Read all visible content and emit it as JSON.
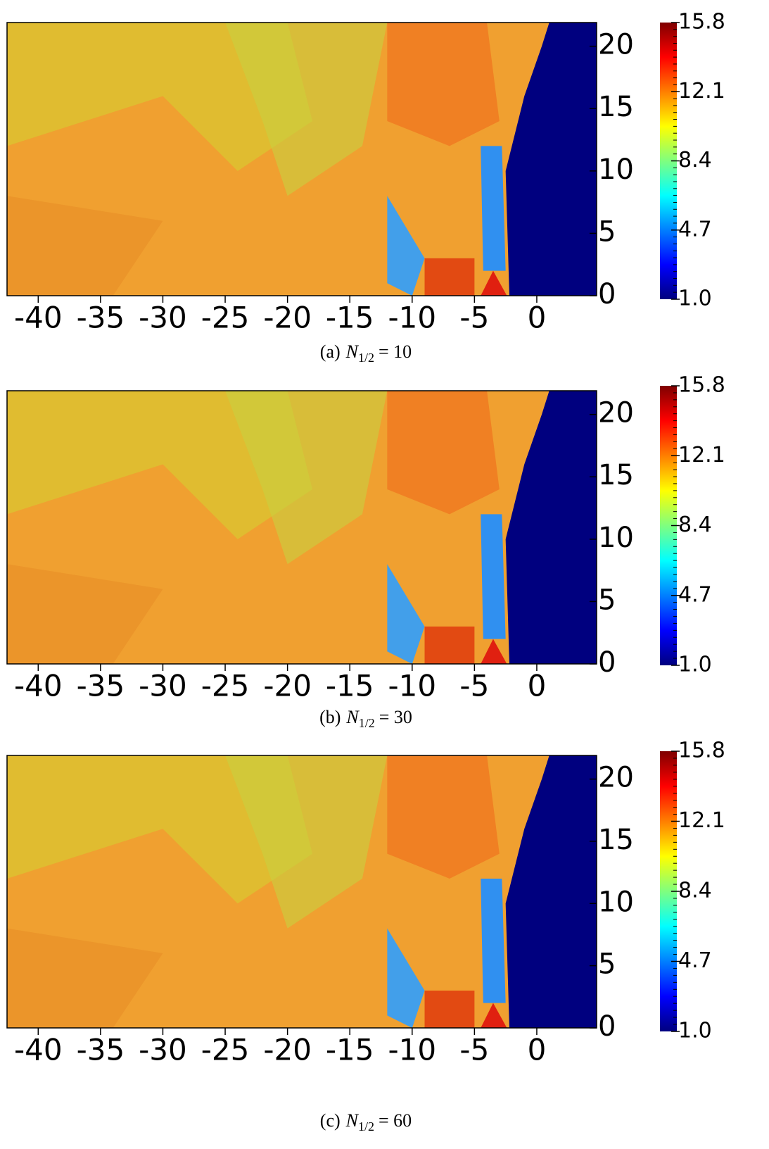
{
  "chart_data": [
    {
      "type": "heatmap",
      "caption": {
        "label": "(a)",
        "var": "N",
        "sub": "1/2",
        "eq": {
          "value": 10,
          "label": "= 10"
        }
      },
      "xlim": [
        -42.5,
        4.8
      ],
      "ylim": [
        0,
        21.9
      ],
      "xticks": [
        -40,
        -35,
        -30,
        -25,
        -20,
        -15,
        -10,
        -5,
        0
      ],
      "yticks": [
        0,
        5,
        10,
        15,
        20
      ],
      "clim": [
        1.0,
        15.8
      ],
      "cticks": [
        {
          "value": 1.0,
          "label": "1.0"
        },
        4.7,
        8.4,
        12.1,
        15.8
      ],
      "colormap": [
        "#00007f",
        "#0000ff",
        "#007fff",
        "#00ffff",
        "#7fff7f",
        "#ffff00",
        "#ff7f00",
        "#ff0000",
        "#7f0000"
      ]
    },
    {
      "type": "heatmap",
      "caption": {
        "label": "(b)",
        "var": "N",
        "sub": "1/2",
        "eq": {
          "value": 30,
          "label": "= 30"
        }
      },
      "xlim": [
        -42.5,
        4.8
      ],
      "ylim": [
        0,
        21.9
      ],
      "xticks": [
        -40,
        -35,
        -30,
        -25,
        -20,
        -15,
        -10,
        -5,
        0
      ],
      "yticks": [
        0,
        5,
        10,
        15,
        20
      ],
      "clim": [
        1.0,
        15.8
      ],
      "cticks": [
        {
          "value": 1.0,
          "label": "1.0"
        },
        4.7,
        8.4,
        12.1,
        15.8
      ],
      "colormap": [
        "#00007f",
        "#0000ff",
        "#007fff",
        "#00ffff",
        "#7fff7f",
        "#ffff00",
        "#ff7f00",
        "#ff0000",
        "#7f0000"
      ]
    },
    {
      "type": "heatmap",
      "caption": {
        "label": "(c)",
        "var": "N",
        "sub": "1/2",
        "eq": {
          "value": 60,
          "label": "= 60"
        }
      },
      "xlim": [
        -42.5,
        4.8
      ],
      "ylim": [
        0,
        21.9
      ],
      "xticks": [
        -40,
        -35,
        -30,
        -25,
        -20,
        -15,
        -10,
        -5,
        0
      ],
      "yticks": [
        0,
        5,
        10,
        15,
        20
      ],
      "clim": [
        1.0,
        15.8
      ],
      "cticks": [
        {
          "value": 1.0,
          "label": "1.0"
        },
        4.7,
        8.4,
        12.1,
        15.8
      ],
      "colormap": [
        "#00007f",
        "#0000ff",
        "#007fff",
        "#00ffff",
        "#7fff7f",
        "#ffff00",
        "#ff7f00",
        "#ff0000",
        "#7f0000"
      ]
    }
  ]
}
